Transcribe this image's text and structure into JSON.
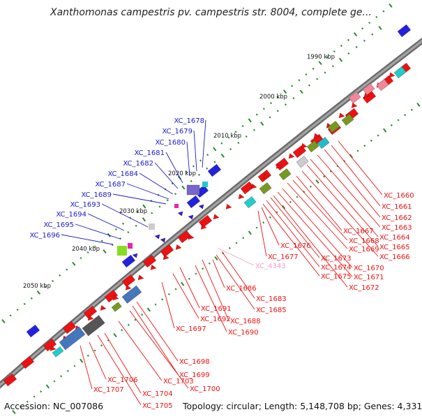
{
  "title": "Xanthomonas campestris pv. campestris str. 8004, complete ge...",
  "footer": {
    "accession": "Accession: NC_007086",
    "summary": "Topology: circular; Length: 5,148,708 bp; Genes: 4,331"
  },
  "colors": {
    "backbone": "#8c8c8c",
    "forward_gene": "#2222dd",
    "reverse_gene": "#ee1111",
    "forward_label": "#1a1acc",
    "reverse_label": "#ee1111",
    "rna_label": "#f4a0c8",
    "tick": "#2a8a2a"
  },
  "kbp_labels": [
    "1990 kbp",
    "2000 kbp",
    "2010 kbp",
    "2020 kbp",
    "2030 kbp",
    "2040 kbp",
    "2050 kbp"
  ],
  "labels_forward": [
    "XC_1678",
    "XC_1679",
    "XC_1680",
    "XC_1681",
    "XC_1682",
    "XC_1684",
    "XC_1687",
    "XC_1689",
    "XC_1693",
    "XC_1694",
    "XC_1695",
    "XC_1696"
  ],
  "labels_reverse_right": [
    "XC_1660",
    "XC_1661",
    "XC_1662",
    "XC_1663",
    "XC_1664",
    "XC_1665",
    "XC_1666",
    "XC_1667",
    "XC_1668",
    "XC_1669",
    "XC_1670",
    "XC_1671",
    "XC_1672",
    "XC_1673",
    "XC_1674",
    "XC_1675",
    "XC_1676",
    "XC_1677"
  ],
  "labels_reverse_bottom": [
    "XC_1683",
    "XC_1685",
    "XC_1686",
    "XC_1688",
    "XC_1690",
    "XC_1691",
    "XC_1692",
    "XC_1697",
    "XC_1698",
    "XC_1699",
    "XC_1700",
    "XC_1703",
    "XC_1704",
    "XC_1705",
    "XC_1706",
    "XC_1707"
  ],
  "label_rna": "XC_4343"
}
